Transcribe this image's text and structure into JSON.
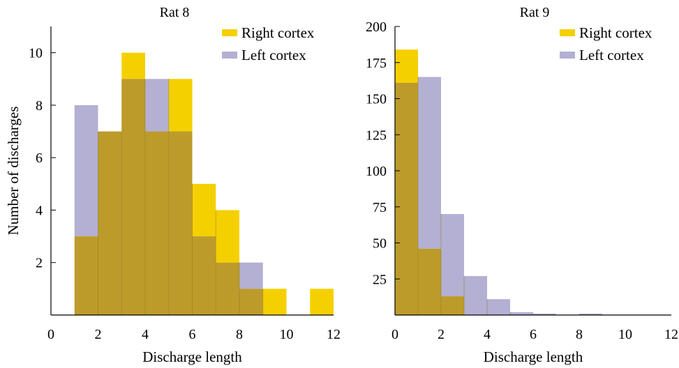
{
  "chart_data": [
    {
      "type": "bar",
      "title": "Rat 8",
      "xlabel": "Discharge length",
      "ylabel": "Number of discharges",
      "xlim": [
        0,
        12
      ],
      "ylim": [
        0,
        11
      ],
      "xticks": [
        0,
        2,
        4,
        6,
        8,
        10,
        12
      ],
      "yticks": [
        2,
        4,
        6,
        8,
        10
      ],
      "bin_edges": [
        1,
        2,
        3,
        4,
        5,
        6,
        7,
        8,
        9,
        10,
        11,
        12
      ],
      "legend_position": "top-right",
      "series": [
        {
          "name": "Right cortex",
          "color": "#f5d000",
          "values": [
            3,
            7,
            10,
            7,
            9,
            5,
            4,
            1,
            1,
            0,
            1
          ]
        },
        {
          "name": "Left cortex",
          "color": "#b3b0d3",
          "values": [
            8,
            7,
            9,
            9,
            7,
            3,
            2,
            2,
            0,
            0,
            0
          ]
        }
      ],
      "overlap_color": "#bd9b2a"
    },
    {
      "type": "bar",
      "title": "Rat 9",
      "xlabel": "Discharge length",
      "ylabel": "",
      "xlim": [
        0,
        12
      ],
      "ylim": [
        0,
        200
      ],
      "xticks": [
        0,
        2,
        4,
        6,
        8,
        10,
        12
      ],
      "yticks": [
        25,
        50,
        75,
        100,
        125,
        150,
        175,
        200
      ],
      "bin_edges": [
        0,
        1,
        2,
        3,
        4,
        5,
        6,
        7,
        8,
        9,
        10,
        11,
        12
      ],
      "legend_position": "top-right",
      "series": [
        {
          "name": "Right cortex",
          "color": "#f5d000",
          "values": [
            184,
            46,
            13,
            0,
            0,
            0,
            0,
            0,
            0,
            0,
            0,
            0
          ]
        },
        {
          "name": "Left cortex",
          "color": "#b3b0d3",
          "values": [
            161,
            165,
            70,
            27,
            11,
            2,
            1,
            0,
            1,
            0,
            0,
            0
          ]
        }
      ],
      "overlap_color": "#bd9b2a"
    }
  ]
}
